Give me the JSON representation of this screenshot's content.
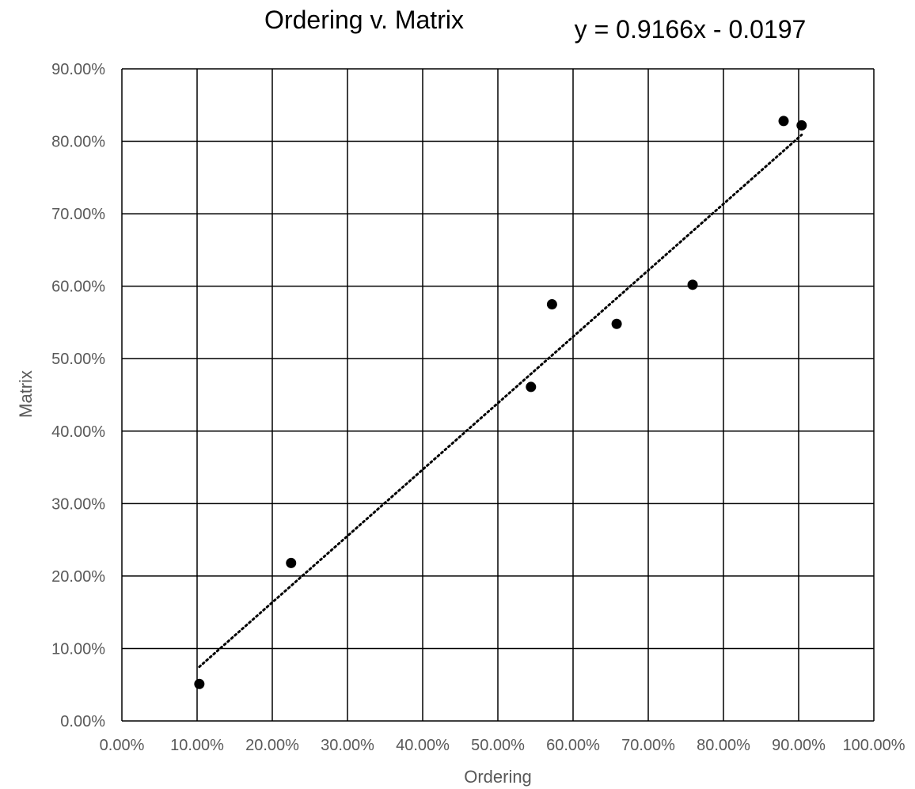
{
  "chart_data": {
    "type": "scatter",
    "title": "Ordering v. Matrix",
    "trendline_label": "y = 0.9166x - 0.0197",
    "xlabel": "Ordering",
    "ylabel": "Matrix",
    "xlim": [
      0,
      1
    ],
    "ylim": [
      0,
      0.9
    ],
    "grid": true,
    "x_tick_labels": [
      "0.00%",
      "10.00%",
      "20.00%",
      "30.00%",
      "40.00%",
      "50.00%",
      "60.00%",
      "70.00%",
      "80.00%",
      "90.00%",
      "100.00%"
    ],
    "y_tick_labels": [
      "0.00%",
      "10.00%",
      "20.00%",
      "30.00%",
      "40.00%",
      "50.00%",
      "60.00%",
      "70.00%",
      "80.00%",
      "90.00%"
    ],
    "points": [
      {
        "x": 0.103,
        "y": 0.051
      },
      {
        "x": 0.225,
        "y": 0.218
      },
      {
        "x": 0.544,
        "y": 0.461
      },
      {
        "x": 0.572,
        "y": 0.575
      },
      {
        "x": 0.658,
        "y": 0.548
      },
      {
        "x": 0.759,
        "y": 0.602
      },
      {
        "x": 0.88,
        "y": 0.828
      },
      {
        "x": 0.904,
        "y": 0.822
      }
    ],
    "trendline": {
      "type": "linear",
      "slope": 0.9166,
      "intercept": -0.0197,
      "style": "dotted",
      "x_range": [
        0.103,
        0.904
      ]
    },
    "colors": {
      "points": "#000000",
      "grid": "#000000",
      "trendline": "#000000",
      "tick_text": "#595959",
      "title_text": "#000000"
    }
  }
}
